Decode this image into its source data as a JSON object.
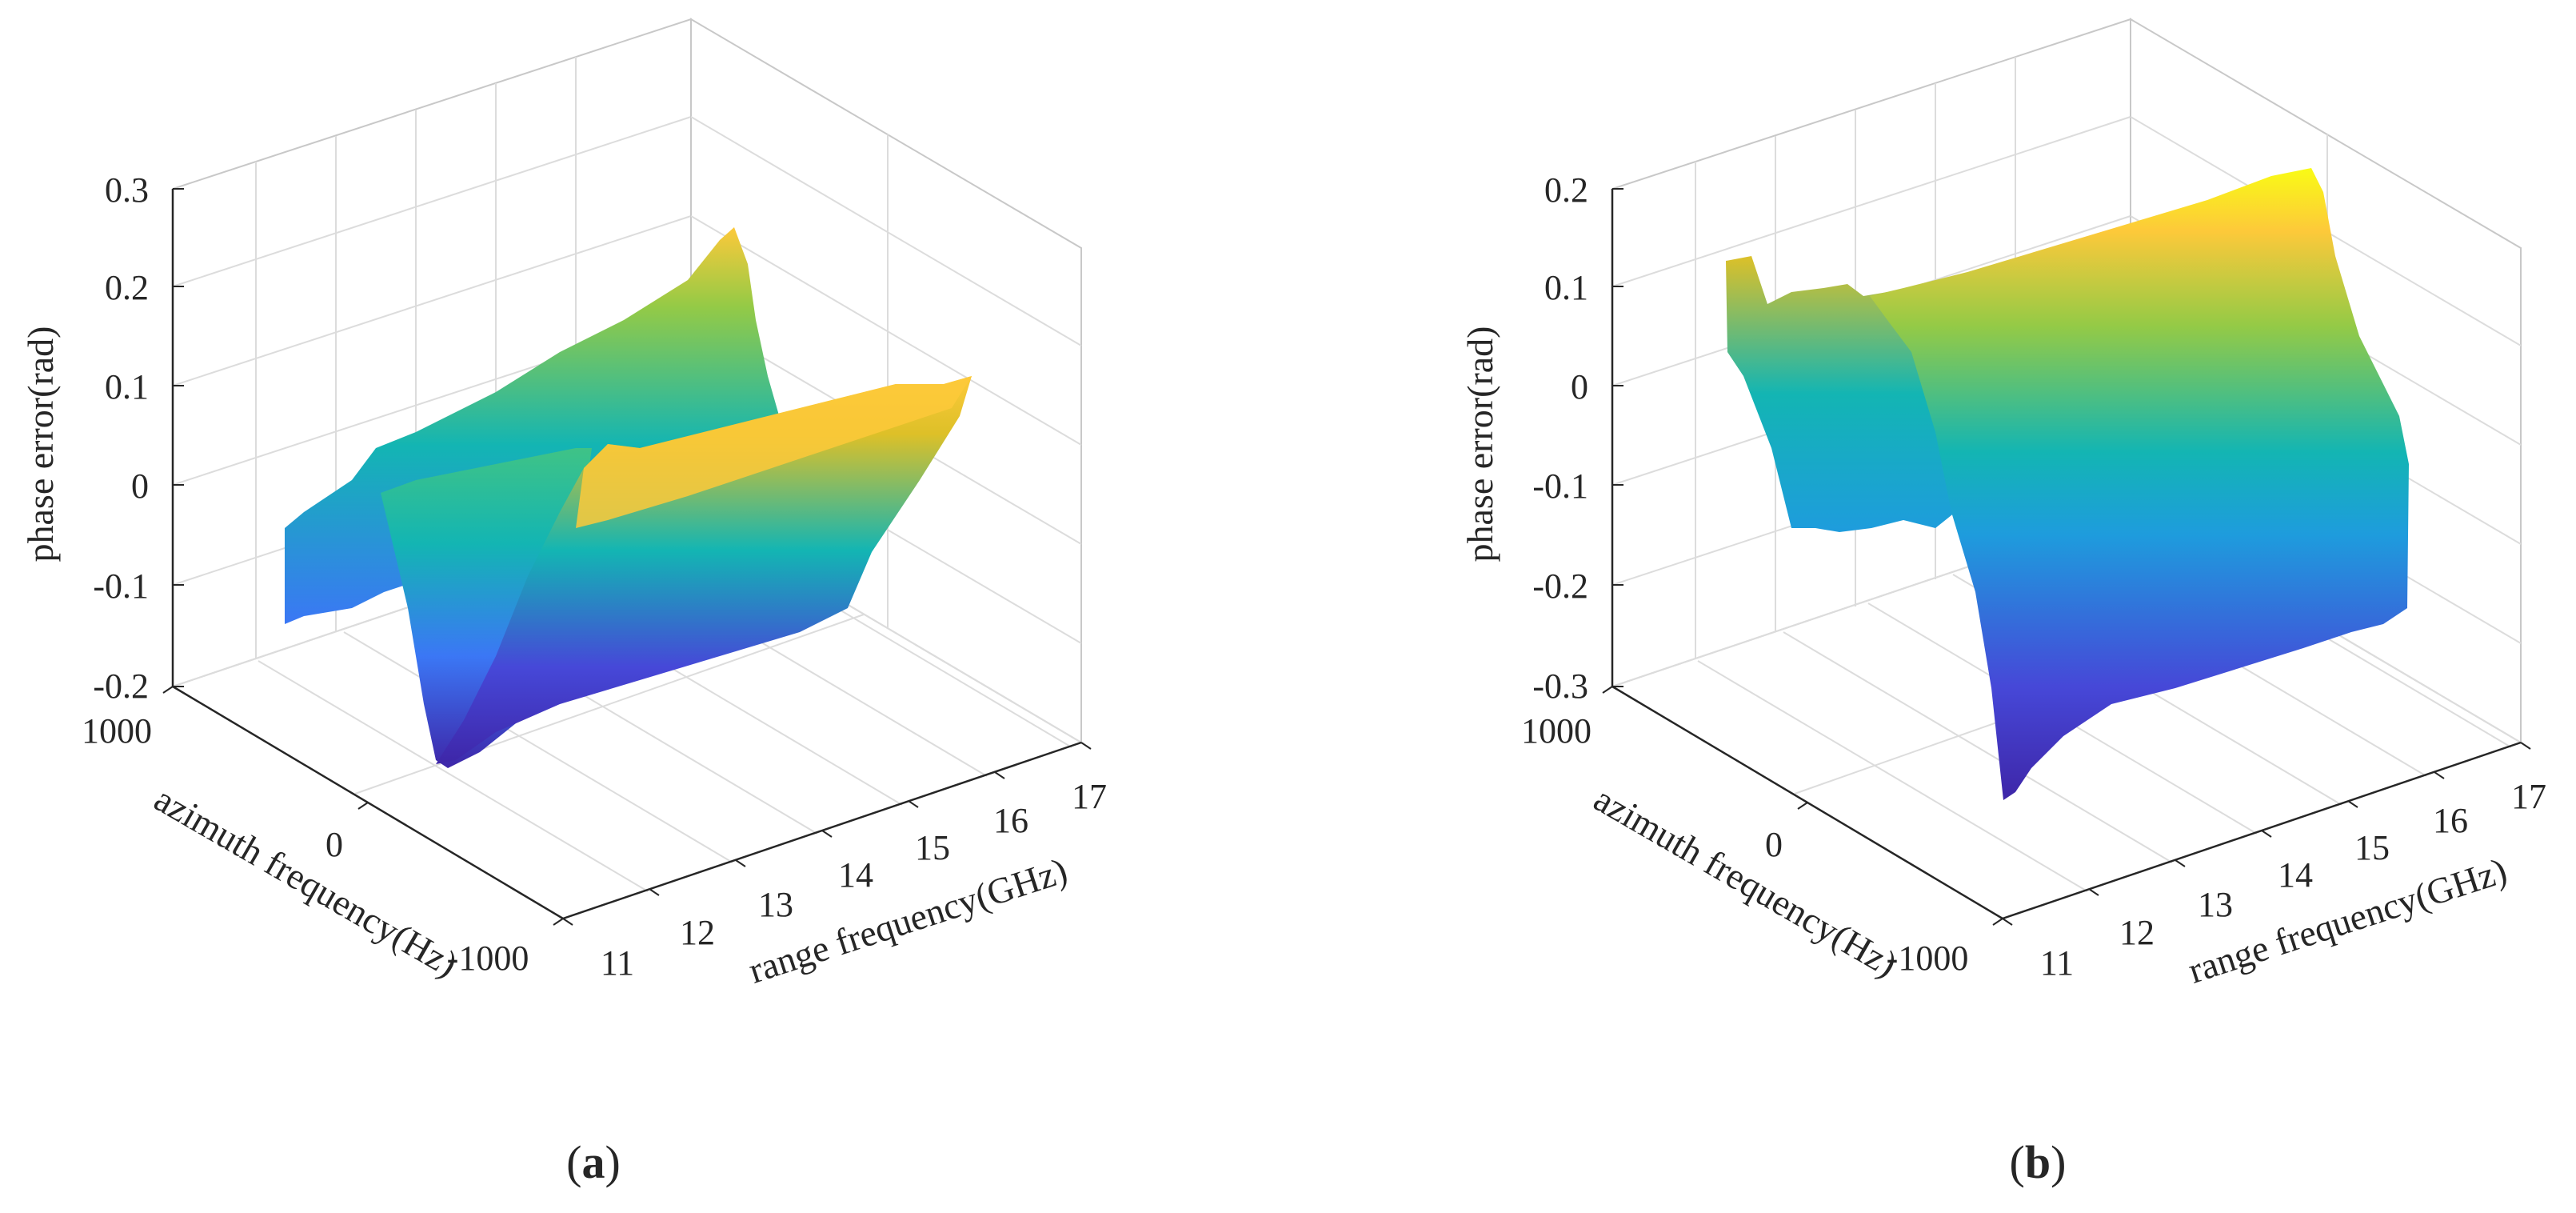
{
  "figure": {
    "colormap": [
      "#3e26a8",
      "#4648d8",
      "#3b77f5",
      "#1e9cdd",
      "#13b5b3",
      "#3fc386",
      "#94ca46",
      "#ddc028",
      "#fdc93a",
      "#f9fb15"
    ],
    "grid_color": "#dcdcdc",
    "axis_color": "#262626"
  },
  "chart_data": [
    {
      "type": "surface",
      "panel_label": "a",
      "caption_text": "(a)",
      "zlabel": "phase error(rad)",
      "ylabel": "azimuth frequency(Hz)",
      "xlabel": "range frequency(GHz)",
      "zlim": [
        -0.2,
        0.3
      ],
      "zticks": [
        "0.3",
        "0.2",
        "0.1",
        "0",
        "-0.1",
        "-0.2"
      ],
      "yticks": [
        "1000",
        "0",
        "-1000"
      ],
      "xticks": [
        "11",
        "12",
        "13",
        "14",
        "15",
        "16",
        "17"
      ],
      "surface_profile": {
        "range_frequency_GHz": [
          11.5,
          12.2,
          12.6,
          13.0,
          14.0,
          15.0,
          16.0,
          17.0
        ],
        "phase_error_at_azimuth_max_rad": [
          -0.13,
          -0.05,
          -0.02,
          0.0,
          0.06,
          0.13,
          0.2,
          0.27
        ],
        "phase_error_at_azimuth_min_rad": [
          -0.18,
          -0.2,
          0.02,
          0.02,
          0.06,
          0.12,
          0.16,
          0.2
        ]
      }
    },
    {
      "type": "surface",
      "panel_label": "b",
      "caption_text": "(b)",
      "zlabel": "phase error(rad)",
      "ylabel": "azimuth frequency(Hz)",
      "xlabel": "range frequency(GHz)",
      "zlim": [
        -0.3,
        0.2
      ],
      "zticks": [
        "0.2",
        "0.1",
        "0",
        "-0.1",
        "-0.2",
        "-0.3"
      ],
      "yticks": [
        "1000",
        "0",
        "-1000"
      ],
      "xticks": [
        "11",
        "12",
        "13",
        "14",
        "15",
        "16",
        "17"
      ],
      "surface_profile": {
        "range_frequency_GHz": [
          11.5,
          12.0,
          12.5,
          13.0,
          14.0,
          15.0,
          16.0,
          17.0
        ],
        "phase_error_at_azimuth_max_rad": [
          0.07,
          0.05,
          0.02,
          0.12,
          0.14,
          0.16,
          0.18,
          0.2
        ],
        "phase_error_at_azimuth_min_rad": [
          -0.22,
          -0.2,
          -0.2,
          -0.27,
          -0.26,
          -0.25,
          -0.24,
          -0.22
        ]
      }
    }
  ]
}
